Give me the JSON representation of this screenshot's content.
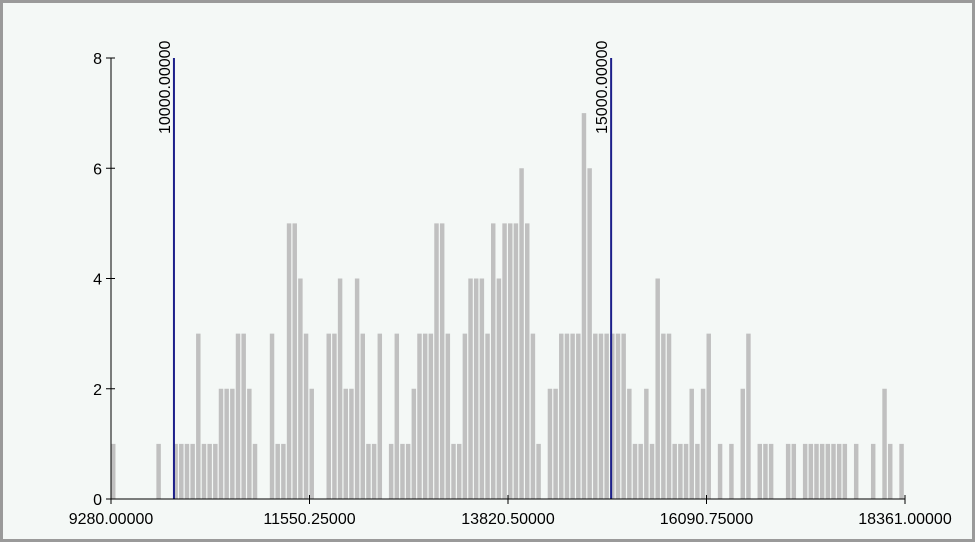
{
  "chart_data": {
    "type": "bar",
    "title": "",
    "xlabel": "",
    "ylabel": "",
    "xlim": [
      9280.0,
      18361.0
    ],
    "ylim": [
      0,
      8
    ],
    "yticks": [
      0,
      2,
      4,
      6,
      8
    ],
    "ytick_labels": [
      "0",
      "2",
      "4",
      "6",
      "8"
    ],
    "xticks": [
      9280.0,
      11550.25,
      13820.5,
      16090.75,
      18361.0
    ],
    "xtick_labels": [
      "9280.00000",
      "11550.25000",
      "13820.50000",
      "16090.75000",
      "18361.00000"
    ],
    "bar_color": "#c0c0c0",
    "grid": false,
    "bins": 140,
    "bar_width": 64.86,
    "bar_starts": [
      9280.0,
      9344.86,
      9409.73,
      9474.59,
      9539.46,
      9604.32,
      9669.19,
      9734.05,
      9798.91,
      9863.78,
      9928.64,
      9993.51,
      10058.37,
      10123.24,
      10188.1,
      10252.96,
      10317.83,
      10382.69,
      10447.56,
      10512.42,
      10577.29,
      10642.15,
      10707.01,
      10771.88,
      10836.74,
      10901.61,
      10966.47,
      11031.34,
      11096.2,
      11161.06,
      11225.93,
      11290.79,
      11355.66,
      11420.52,
      11485.39,
      11550.25,
      11615.11,
      11679.98,
      11744.84,
      11809.71,
      11874.57,
      11939.44,
      12004.3,
      12069.16,
      12134.03,
      12198.89,
      12263.76,
      12328.62,
      12393.49,
      12458.35,
      12523.21,
      12588.08,
      12652.94,
      12717.81,
      12782.67,
      12847.54,
      12912.4,
      12977.26,
      13042.13,
      13106.99,
      13171.86,
      13236.72,
      13301.59,
      13366.45,
      13431.31,
      13496.18,
      13561.04,
      13625.91,
      13690.77,
      13755.64,
      13820.5,
      13885.36,
      13950.23,
      14015.09,
      14079.96,
      14144.82,
      14209.69,
      14274.55,
      14339.41,
      14404.28,
      14469.14,
      14534.01,
      14598.87,
      14663.74,
      14728.6,
      14793.46,
      14858.33,
      14923.19,
      14988.06,
      15052.92,
      15117.79,
      15182.65,
      15247.51,
      15312.38,
      15377.24,
      15442.11,
      15506.97,
      15571.84,
      15636.7,
      15701.56,
      15766.43,
      15831.29,
      15896.16,
      15961.02,
      16025.89,
      16090.75,
      16155.61,
      16220.48,
      16285.34,
      16350.21,
      16415.07,
      16479.94,
      16544.8,
      16609.66,
      16674.53,
      16739.39,
      16804.26,
      16869.12,
      16933.99,
      16998.85,
      17063.71,
      17128.58,
      17193.44,
      17258.31,
      17323.17,
      17388.04,
      17452.9,
      17517.76,
      17582.63,
      17647.49,
      17712.36,
      17777.22,
      17842.09,
      17906.95,
      17971.81,
      18036.68,
      18101.54,
      18166.41,
      18231.27,
      18296.14
    ],
    "values": [
      1,
      0,
      0,
      0,
      0,
      0,
      0,
      0,
      1,
      0,
      0,
      1,
      1,
      1,
      1,
      3,
      1,
      1,
      1,
      2,
      2,
      2,
      3,
      3,
      2,
      1,
      0,
      0,
      3,
      1,
      1,
      5,
      5,
      4,
      3,
      2,
      0,
      0,
      3,
      3,
      4,
      2,
      2,
      4,
      3,
      1,
      1,
      3,
      0,
      1,
      3,
      1,
      1,
      2,
      3,
      3,
      3,
      5,
      5,
      3,
      1,
      1,
      3,
      4,
      4,
      4,
      3,
      5,
      4,
      5,
      5,
      5,
      6,
      5,
      3,
      1,
      0,
      2,
      2,
      3,
      3,
      3,
      3,
      7,
      6,
      3,
      3,
      3,
      3,
      3,
      3,
      2,
      1,
      1,
      2,
      1,
      4,
      3,
      3,
      1,
      1,
      1,
      2,
      1,
      2,
      3,
      0,
      1,
      0,
      1,
      0,
      2,
      3,
      0,
      1,
      1,
      1,
      0,
      0,
      1,
      1,
      0,
      1,
      1,
      1,
      1,
      1,
      1,
      1,
      1,
      0,
      1,
      0,
      0,
      1,
      0,
      2,
      1,
      0,
      1
    ],
    "annotations": [
      {
        "x": 10000.0,
        "label": "10000.00000",
        "color": "#1c1f8a"
      },
      {
        "x": 15000.0,
        "label": "15000.00000",
        "color": "#1c1f8a"
      }
    ]
  }
}
